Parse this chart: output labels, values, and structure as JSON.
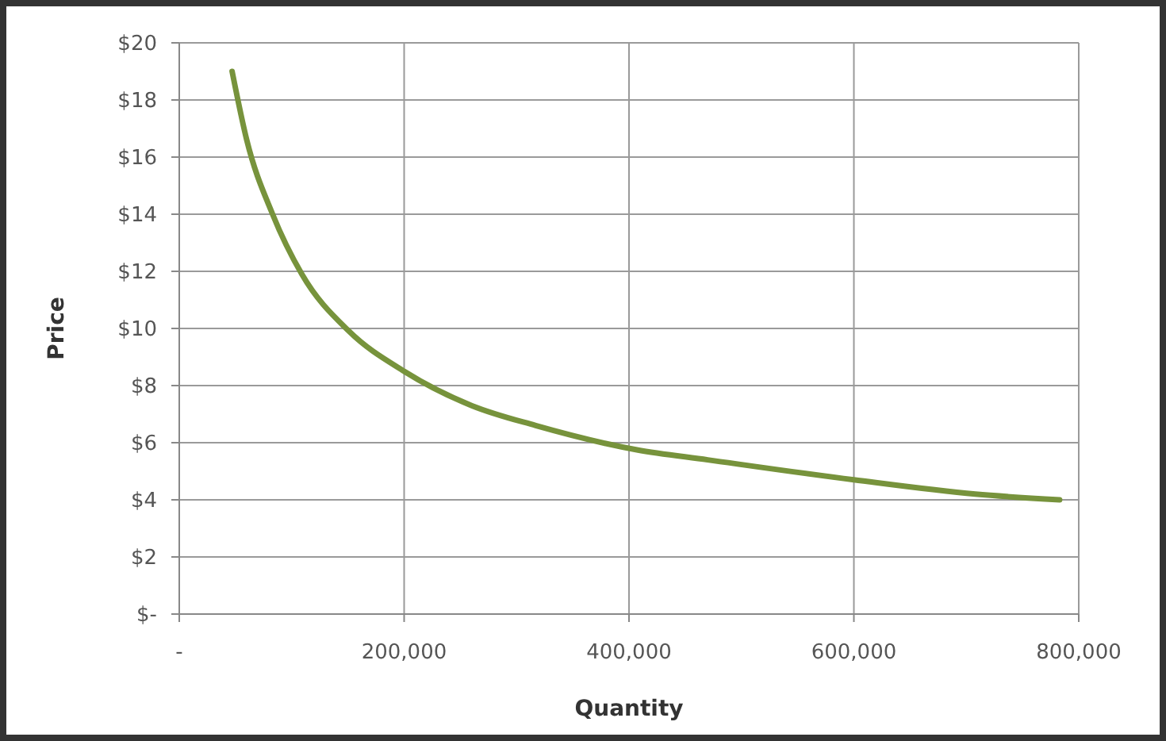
{
  "chart_data": {
    "type": "line",
    "xlabel": "Quantity",
    "ylabel": "Price",
    "x": [
      47000,
      60000,
      83000,
      109000,
      151000,
      200000,
      260000,
      317000,
      407000,
      470000,
      600000,
      708000,
      783000
    ],
    "series": [
      {
        "color": "#77933c",
        "values": [
          19.0,
          16.6,
          14.0,
          11.9,
          9.9,
          8.5,
          7.3,
          6.6,
          5.75,
          5.4,
          4.7,
          4.2,
          4.0
        ]
      }
    ],
    "xlim": [
      0,
      800000
    ],
    "xticks": [
      {
        "value": 0,
        "label": "-"
      },
      {
        "value": 200000,
        "label": "200,000"
      },
      {
        "value": 400000,
        "label": "400,000"
      },
      {
        "value": 600000,
        "label": "600,000"
      },
      {
        "value": 800000,
        "label": "800,000"
      }
    ],
    "ylim": [
      0,
      20
    ],
    "yticks": [
      {
        "value": 0,
        "label": "$-"
      },
      {
        "value": 2,
        "label": "$2"
      },
      {
        "value": 4,
        "label": "$4"
      },
      {
        "value": 6,
        "label": "$6"
      },
      {
        "value": 8,
        "label": "$8"
      },
      {
        "value": 10,
        "label": "$10"
      },
      {
        "value": 12,
        "label": "$12"
      },
      {
        "value": 14,
        "label": "$14"
      },
      {
        "value": 16,
        "label": "$16"
      },
      {
        "value": 18,
        "label": "$18"
      },
      {
        "value": 20,
        "label": "$20"
      }
    ],
    "grid": true,
    "marker": "none",
    "line_style": "solid"
  }
}
